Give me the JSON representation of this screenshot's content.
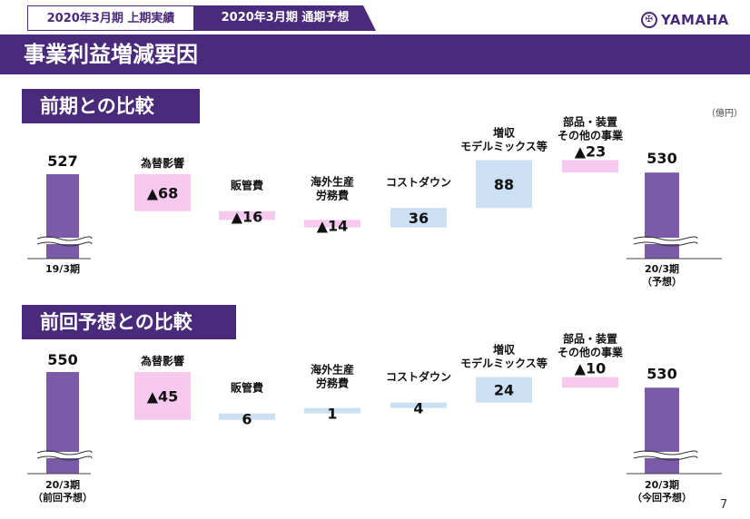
{
  "header": {
    "tab_actual": "2020年3月期 上期実績",
    "tab_forecast": "2020年3月期 通期予想",
    "logo_text": "YAMAHA",
    "logo_mark": "✠",
    "title": "事業利益増減要因",
    "unit": "（億円）",
    "page_number": "7"
  },
  "colors": {
    "brand": "#4a2a7a",
    "bar_total": "#7b5aa8",
    "negative": "#f7c9ee",
    "positive": "#cbe0f2"
  },
  "chart_data": [
    {
      "type": "bar",
      "title": "前期との比較",
      "start": {
        "label": "19/3期",
        "sublabel": "",
        "value": 527,
        "value_label": "527"
      },
      "end": {
        "label": "20/3期",
        "sublabel": "（予想）",
        "value": 530,
        "value_label": "530"
      },
      "steps": [
        {
          "name": "為替影響",
          "value": -68,
          "value_label": "▲68",
          "label_pos": "above"
        },
        {
          "name": "販管費",
          "value": -16,
          "value_label": "▲16",
          "label_pos": "inside"
        },
        {
          "name": "海外生産\n労務費",
          "value": -14,
          "value_label": "▲14",
          "label_pos": "inside"
        },
        {
          "name": "コストダウン",
          "value": 36,
          "value_label": "36",
          "label_pos": "inside"
        },
        {
          "name": "増収\nモデルミックス等",
          "value": 88,
          "value_label": "88",
          "label_pos": "above"
        },
        {
          "name": "部品・装置\nその他の事業",
          "value": -23,
          "value_label": "▲23",
          "label_pos": "above"
        }
      ]
    },
    {
      "type": "bar",
      "title": "前回予想との比較",
      "start": {
        "label": "20/3期",
        "sublabel": "（前回予想）",
        "value": 550,
        "value_label": "550"
      },
      "end": {
        "label": "20/3期",
        "sublabel": "（今回予想）",
        "value": 530,
        "value_label": "530"
      },
      "steps": [
        {
          "name": "為替影響",
          "value": -45,
          "value_label": "▲45",
          "label_pos": "above"
        },
        {
          "name": "販管費",
          "value": 6,
          "value_label": "6",
          "label_pos": "inside"
        },
        {
          "name": "海外生産\n労務費",
          "value": 1,
          "value_label": "1",
          "label_pos": "inside"
        },
        {
          "name": "コストダウン",
          "value": 4,
          "value_label": "4",
          "label_pos": "inside"
        },
        {
          "name": "増収\nモデルミックス等",
          "value": 24,
          "value_label": "24",
          "label_pos": "above"
        },
        {
          "name": "部品・装置\nその他の事業",
          "value": -10,
          "value_label": "▲10",
          "label_pos": "above"
        }
      ]
    }
  ]
}
